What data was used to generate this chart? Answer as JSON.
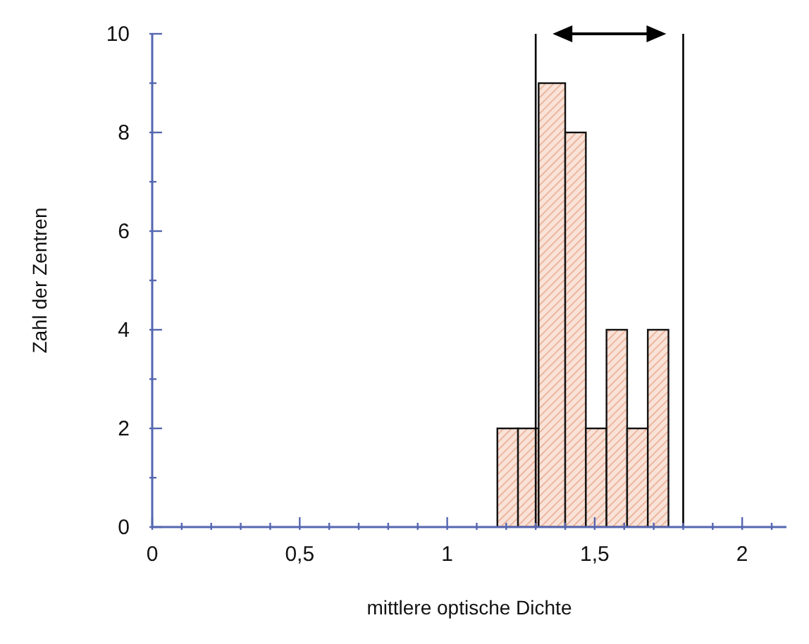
{
  "chart_data": {
    "type": "histogram",
    "xlabel": "mittlere optische Dichte",
    "ylabel": "Zahl der Zentren",
    "bins": [
      1.17,
      1.24,
      1.31,
      1.4,
      1.47,
      1.54,
      1.61,
      1.68,
      1.75
    ],
    "values": [
      2,
      2,
      9,
      8,
      2,
      4,
      2,
      4
    ],
    "color": "#f4cbb8",
    "xlim": [
      0,
      2.15
    ],
    "xticks": [
      0,
      {
        "value": 0.1,
        "label": null
      },
      {
        "value": 0.2,
        "label": null
      },
      {
        "value": 0.3,
        "label": null
      },
      {
        "value": 0.4,
        "label": null
      },
      {
        "value": 0.5,
        "label": "0,5"
      },
      {
        "value": 0.6,
        "label": null
      },
      {
        "value": 0.7,
        "label": null
      },
      {
        "value": 0.8,
        "label": null
      },
      {
        "value": 0.9,
        "label": null
      },
      1,
      {
        "value": 1.1,
        "label": null
      },
      {
        "value": 1.2,
        "label": null
      },
      {
        "value": 1.3,
        "label": null
      },
      {
        "value": 1.4,
        "label": null
      },
      {
        "value": 1.5,
        "label": "1,5"
      },
      {
        "value": 1.6,
        "label": null
      },
      {
        "value": 1.7,
        "label": null
      },
      {
        "value": 1.8,
        "label": null
      },
      {
        "value": 1.9,
        "label": null
      },
      2,
      {
        "value": 2.1,
        "label": null
      }
    ],
    "ylim": [
      0,
      10
    ],
    "yticks": [
      0,
      {
        "value": 1,
        "label": null
      },
      2,
      {
        "value": 3,
        "label": null
      },
      4,
      {
        "value": 5,
        "label": null
      },
      6,
      {
        "value": 7,
        "label": null
      },
      8,
      {
        "value": 9,
        "label": null
      },
      10
    ],
    "ref_lines": [
      {
        "axis": "x",
        "value": 1.3,
        "color": "#000000"
      },
      {
        "axis": "x",
        "value": 1.8,
        "color": "#000000"
      }
    ],
    "grid": false
  }
}
